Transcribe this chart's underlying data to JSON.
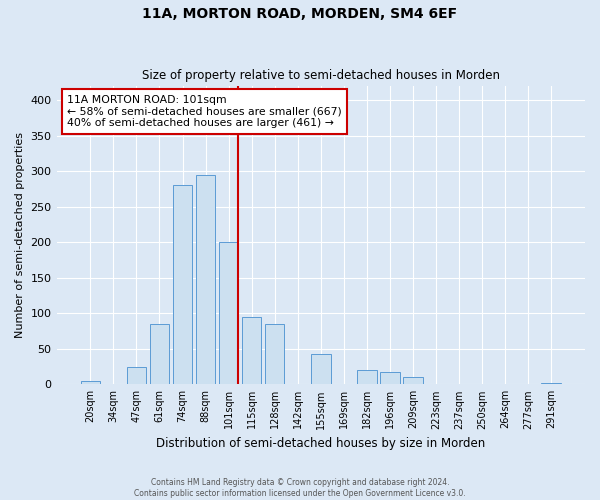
{
  "title": "11A, MORTON ROAD, MORDEN, SM4 6EF",
  "subtitle": "Size of property relative to semi-detached houses in Morden",
  "xlabel": "Distribution of semi-detached houses by size in Morden",
  "ylabel": "Number of semi-detached properties",
  "footer_line1": "Contains HM Land Registry data © Crown copyright and database right 2024.",
  "footer_line2": "Contains public sector information licensed under the Open Government Licence v3.0.",
  "bar_labels": [
    "20sqm",
    "34sqm",
    "47sqm",
    "61sqm",
    "74sqm",
    "88sqm",
    "101sqm",
    "115sqm",
    "128sqm",
    "142sqm",
    "155sqm",
    "169sqm",
    "182sqm",
    "196sqm",
    "209sqm",
    "223sqm",
    "237sqm",
    "250sqm",
    "264sqm",
    "277sqm",
    "291sqm"
  ],
  "bar_values": [
    5,
    0,
    25,
    85,
    280,
    295,
    200,
    95,
    85,
    0,
    42,
    0,
    20,
    17,
    10,
    0,
    0,
    0,
    0,
    0,
    2
  ],
  "bar_color": "#cce0f0",
  "bar_edge_color": "#5b9bd5",
  "highlight_index": 6,
  "highlight_line_color": "#cc0000",
  "annotation_title": "11A MORTON ROAD: 101sqm",
  "annotation_line1": "← 58% of semi-detached houses are smaller (667)",
  "annotation_line2": "40% of semi-detached houses are larger (461) →",
  "annotation_box_edge_color": "#cc0000",
  "ylim": [
    0,
    420
  ],
  "yticks": [
    0,
    50,
    100,
    150,
    200,
    250,
    300,
    350,
    400
  ],
  "background_color": "#dce8f5",
  "plot_background_color": "#dce8f5",
  "grid_color": "#ffffff",
  "title_fontsize": 10,
  "subtitle_fontsize": 8.5
}
